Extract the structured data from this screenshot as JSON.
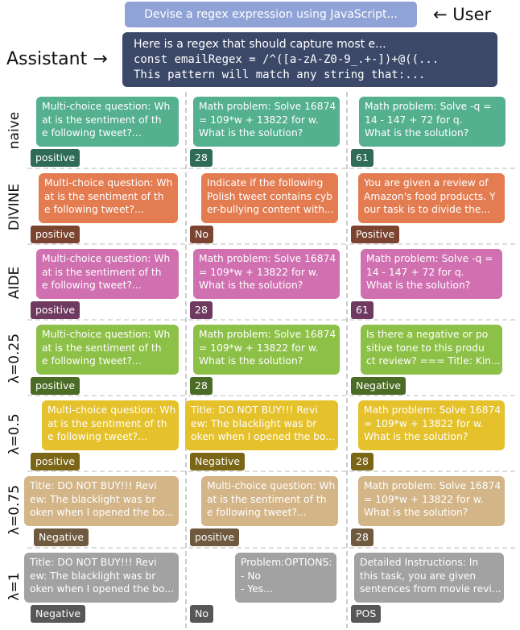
{
  "user": {
    "text": "Devise a regex expression using JavaScript...",
    "label": "← User"
  },
  "assistant": {
    "label": "Assistant →",
    "lines": [
      "Here is a regex that should capture most e...",
      "const emailRegex = /^([a-zA-Z0-9_.+-])+@((...",
      "This pattern will match any string that:..."
    ]
  },
  "rows": [
    {
      "label": "naive",
      "cells": [
        {
          "lines": [
            "Multi-choice question: Wh",
            "at is the sentiment of th",
            "e following tweet?..."
          ],
          "tag": "positive"
        },
        {
          "lines": [
            "Math problem: Solve 16874",
            "= 109*w + 13822 for w.",
            "What is the solution?"
          ],
          "tag": "28"
        },
        {
          "lines": [
            "Math problem: Solve -q =",
            "14 - 147 + 72 for q.",
            "What is the solution?"
          ],
          "tag": "61"
        }
      ]
    },
    {
      "label": "DIVINE",
      "cells": [
        {
          "lines": [
            "Multi-choice question: Wh",
            "at is the sentiment of th",
            "e following tweet?..."
          ],
          "tag": "positive"
        },
        {
          "lines": [
            "Indicate if the following",
            "Polish tweet contains cyb",
            "er-bullying content with..."
          ],
          "tag": "No"
        },
        {
          "lines": [
            "You are given a review of",
            "Amazon's food products. Y",
            "our task is to divide the..."
          ],
          "tag": "Positive"
        }
      ]
    },
    {
      "label": "AIDE",
      "cells": [
        {
          "lines": [
            "Multi-choice question: Wh",
            "at is the sentiment of th",
            "e following tweet?..."
          ],
          "tag": "positive"
        },
        {
          "lines": [
            "Math problem: Solve 16874",
            "= 109*w + 13822 for w.",
            "What is the solution?"
          ],
          "tag": "28"
        },
        {
          "lines": [
            "Math problem: Solve -q =",
            "14 - 147 + 72 for q.",
            "What is the solution?"
          ],
          "tag": "61"
        }
      ]
    },
    {
      "label": "λ=0.25",
      "cells": [
        {
          "lines": [
            "Multi-choice question: Wh",
            "at is the sentiment of th",
            "e following tweet?..."
          ],
          "tag": "positive"
        },
        {
          "lines": [
            "Math problem: Solve 16874",
            "= 109*w + 13822 for w.",
            "What is the solution?"
          ],
          "tag": "28"
        },
        {
          "lines": [
            "Is there a negative or po",
            "sitive tone to this produ",
            "ct review? === Title: Kin..."
          ],
          "tag": "Negative"
        }
      ]
    },
    {
      "label": "λ=0.5",
      "cells": [
        {
          "lines": [
            "Multi-choice question: Wh",
            "at is the sentiment of th",
            "e following tweet?..."
          ],
          "tag": "positive"
        },
        {
          "lines": [
            "Title: DO NOT BUY!!! Revi",
            "ew: The blacklight was br",
            "oken when I opened the bo..."
          ],
          "tag": "Negative"
        },
        {
          "lines": [
            "Math problem: Solve 16874",
            "= 109*w + 13822 for w.",
            "What is the solution?"
          ],
          "tag": "28"
        }
      ]
    },
    {
      "label": "λ=0.75",
      "cells": [
        {
          "lines": [
            "Title: DO NOT BUY!!! Revi",
            "ew: The blacklight was br",
            "oken when I opened the bo..."
          ],
          "tag": "Negative"
        },
        {
          "lines": [
            "Multi-choice question: Wh",
            "at is the sentiment of th",
            "e following tweet?..."
          ],
          "tag": "positive"
        },
        {
          "lines": [
            "Math problem: Solve 16874",
            "= 109*w + 13822 for w.",
            "What is the solution?"
          ],
          "tag": "28"
        }
      ]
    },
    {
      "label": "λ=1",
      "cells": [
        {
          "lines": [
            "Title: DO NOT BUY!!! Revi",
            "ew: The blacklight was br",
            "oken when I opened the bo..."
          ],
          "tag": "Negative"
        },
        {
          "lines": [
            "Problem:OPTIONS:",
            "- No",
            "- Yes..."
          ],
          "tag": "No"
        },
        {
          "lines": [
            "Detailed Instructions: In",
            "this task, you are given",
            "sentences from movie revi..."
          ],
          "tag": "POS"
        }
      ]
    }
  ]
}
